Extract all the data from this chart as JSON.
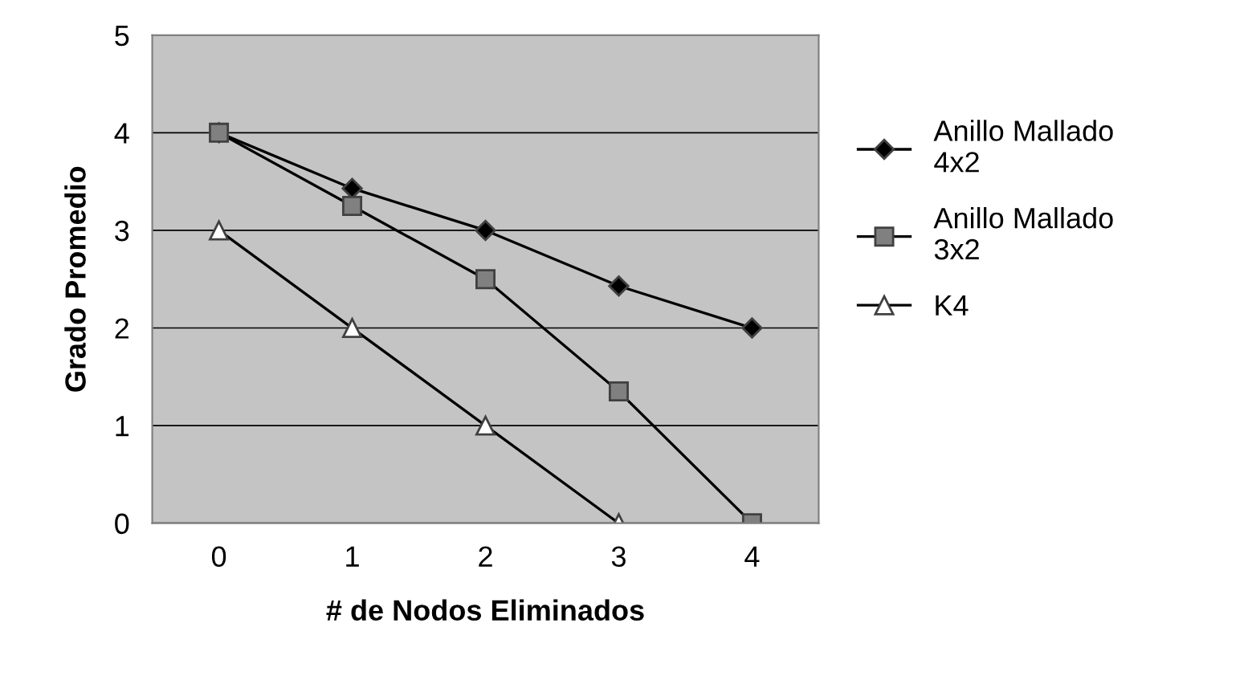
{
  "chart_data": {
    "type": "line",
    "xlabel": "# de Nodos Eliminados",
    "ylabel": "Grado Promedio",
    "categories": [
      "0",
      "1",
      "2",
      "3",
      "4"
    ],
    "series": [
      {
        "name": "Anillo Mallado\n4x2",
        "color": "#000000",
        "marker": "diamond",
        "values": [
          4,
          3.43,
          3.0,
          2.43,
          2.0
        ]
      },
      {
        "name": "Anillo Mallado\n3x2",
        "color": "#000000",
        "marker": "square",
        "values": [
          4,
          3.25,
          2.5,
          1.35,
          0
        ]
      },
      {
        "name": "K4",
        "color": "#000000",
        "marker": "triangle",
        "values": [
          3,
          2,
          1,
          0,
          null
        ]
      }
    ],
    "ylim": [
      0,
      5
    ],
    "yticks": [
      0,
      1,
      2,
      3,
      4,
      5
    ],
    "grid": "y",
    "legend": "right",
    "line_style": "solid"
  }
}
